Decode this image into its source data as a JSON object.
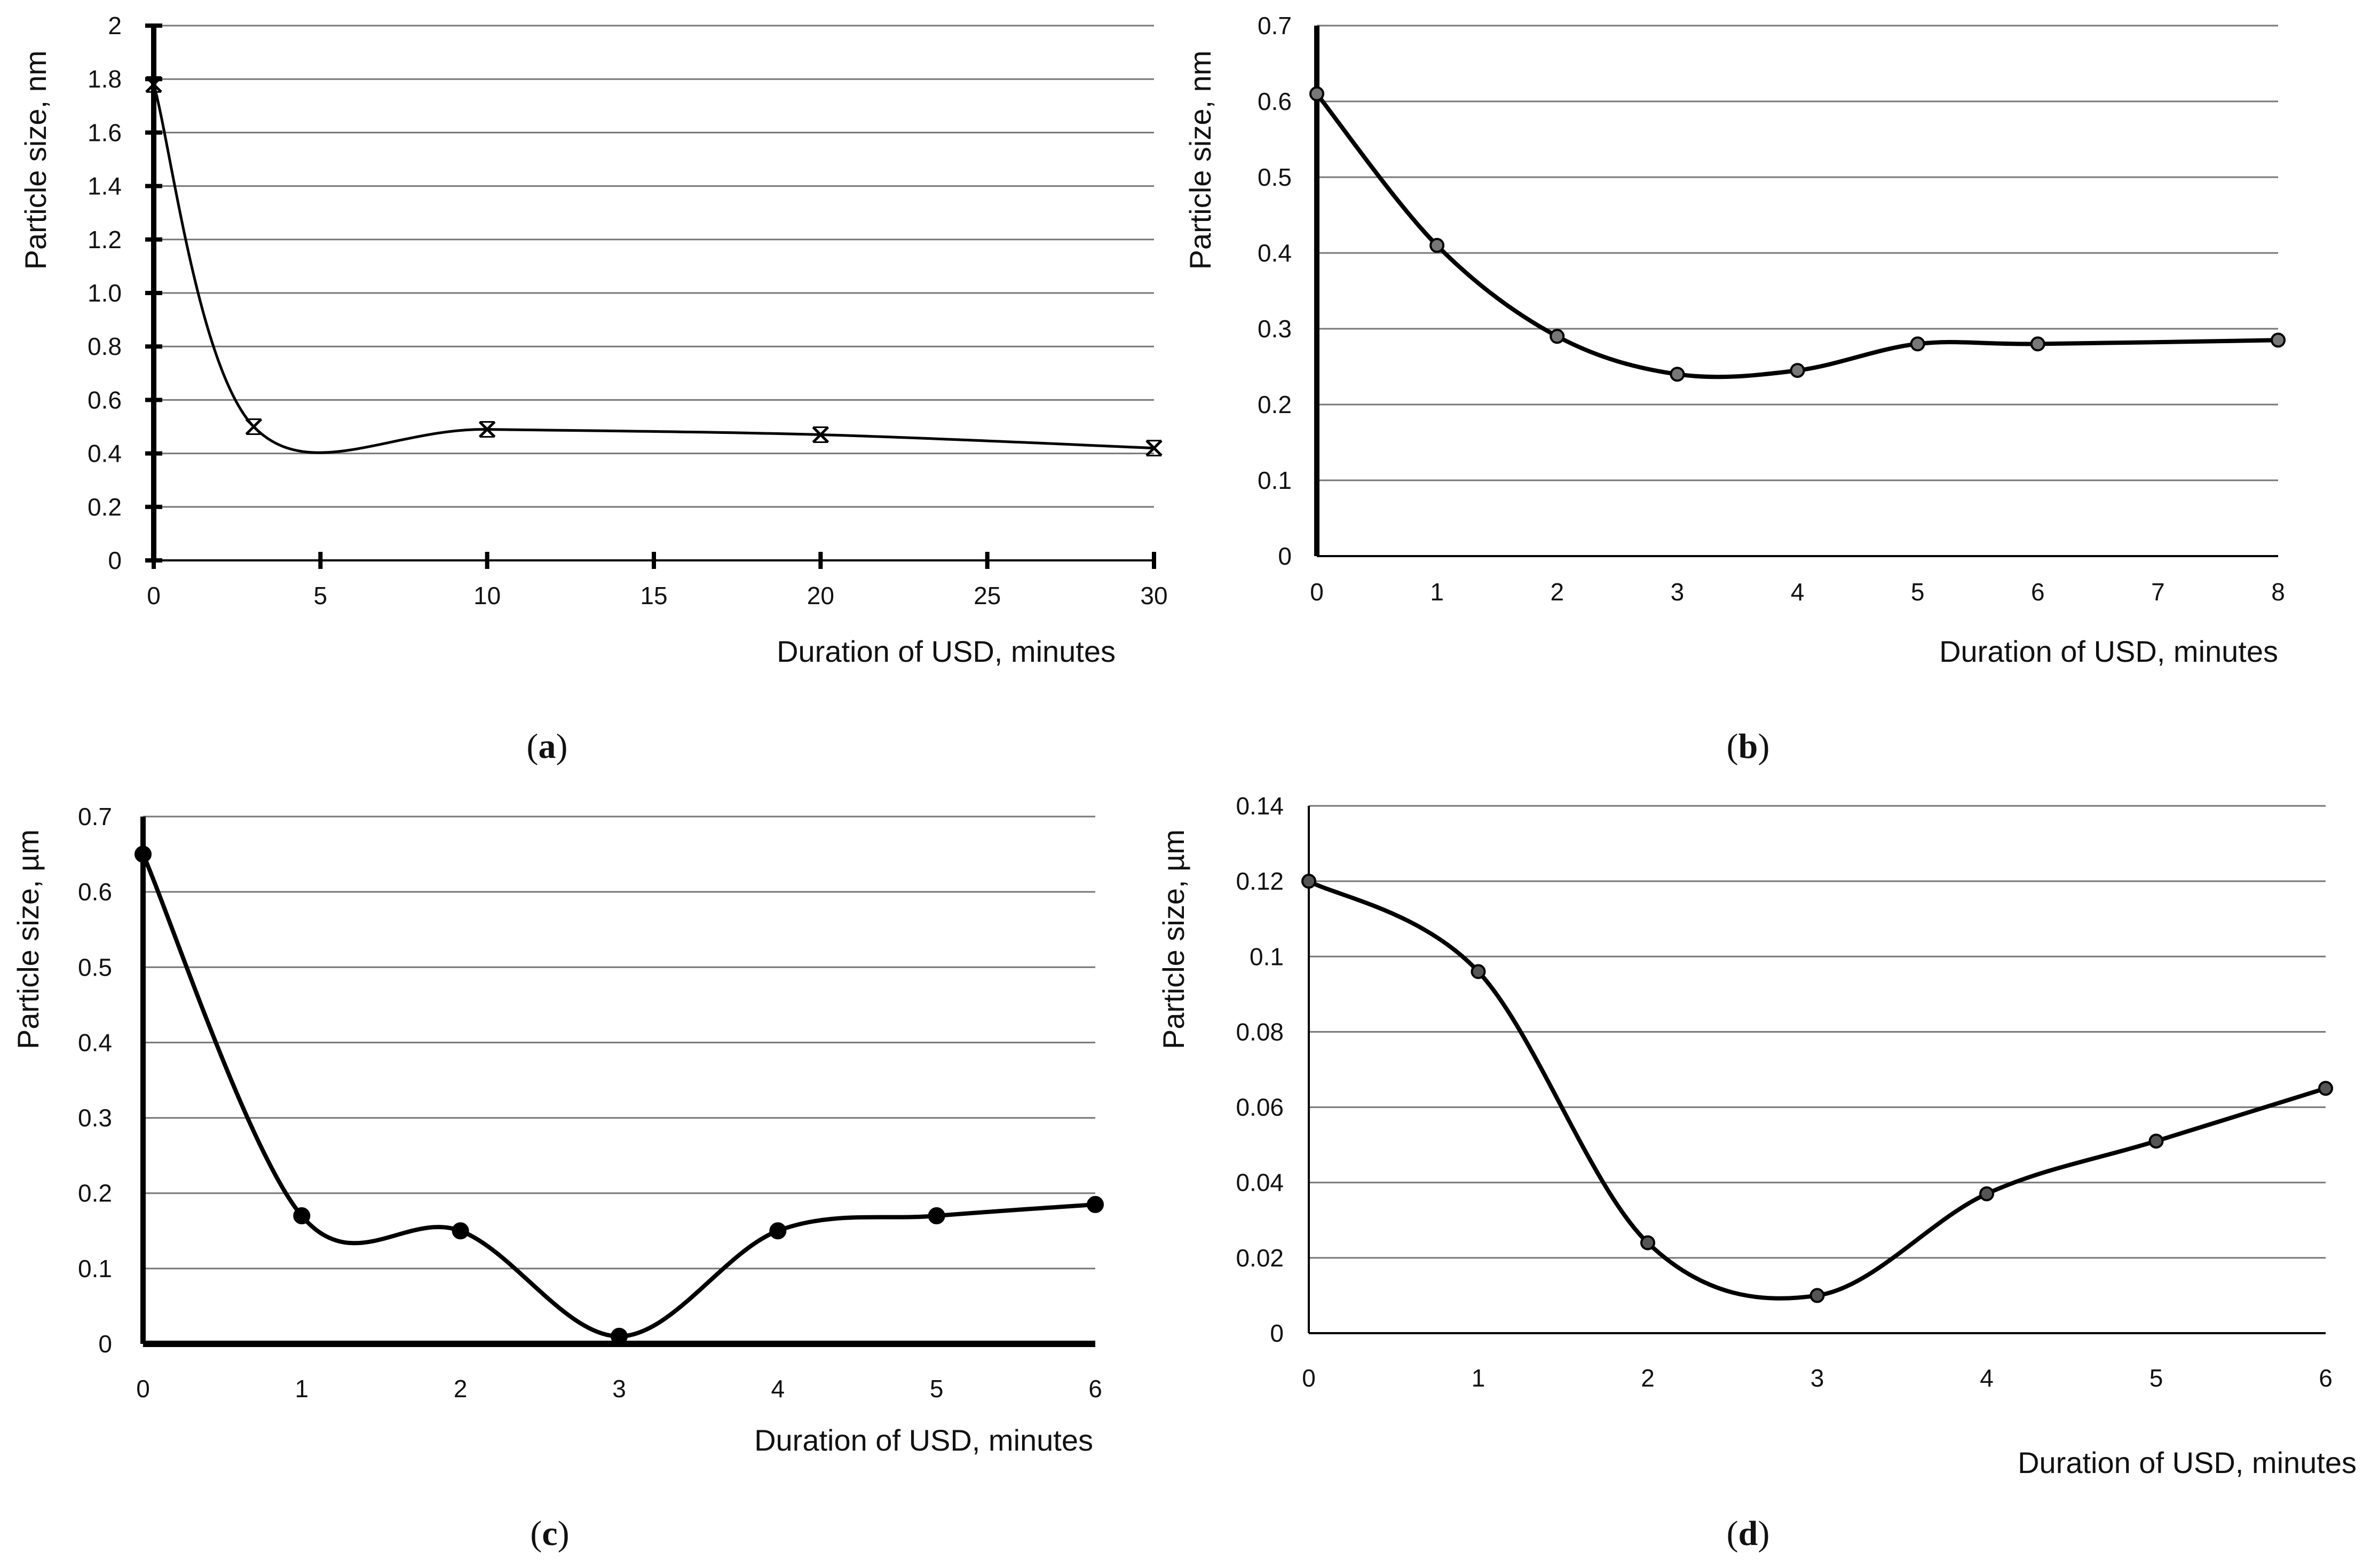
{
  "chart_data": [
    {
      "id": "a",
      "type": "line",
      "panel_label": "a",
      "title": "",
      "xlabel": "Duration of USD, minutes",
      "ylabel": "Particle size, nm",
      "x_ticks": [
        "0",
        "5",
        "10",
        "15",
        "20",
        "25",
        "30"
      ],
      "y_ticks": [
        "0",
        "0.2",
        "0.4",
        "0.6",
        "0.8",
        "1.0",
        "1.2",
        "1.4",
        "1.6",
        "1.8",
        "2"
      ],
      "xlim": [
        0,
        30
      ],
      "ylim": [
        0,
        2
      ],
      "grid": "horizontal",
      "series": [
        {
          "name": "Particle size",
          "marker": "x",
          "x": [
            0,
            3,
            10,
            20,
            30
          ],
          "y": [
            1.78,
            0.5,
            0.49,
            0.47,
            0.42
          ]
        }
      ]
    },
    {
      "id": "b",
      "type": "line",
      "panel_label": "b",
      "title": "",
      "xlabel": "Duration of USD, minutes",
      "ylabel": "Particle size, nm",
      "x_ticks": [
        "0",
        "1",
        "2",
        "3",
        "4",
        "5",
        "6",
        "7",
        "8"
      ],
      "y_ticks": [
        "0",
        "0.1",
        "0.2",
        "0.3",
        "0.4",
        "0.5",
        "0.6",
        "0.7"
      ],
      "xlim": [
        0,
        8
      ],
      "ylim": [
        0,
        0.7
      ],
      "grid": "horizontal",
      "series": [
        {
          "name": "Particle size",
          "marker": "dot",
          "x": [
            0,
            1,
            2,
            3,
            4,
            5,
            6,
            8
          ],
          "y": [
            0.61,
            0.41,
            0.29,
            0.24,
            0.245,
            0.28,
            0.28,
            0.285
          ]
        }
      ]
    },
    {
      "id": "c",
      "type": "line",
      "panel_label": "c",
      "title": "",
      "xlabel": "Duration of USD, minutes",
      "ylabel": "Particle size, µm",
      "x_ticks": [
        "0",
        "1",
        "2",
        "3",
        "4",
        "5",
        "6"
      ],
      "y_ticks": [
        "0",
        "0.1",
        "0.2",
        "0.3",
        "0.4",
        "0.5",
        "0.6",
        "0.7"
      ],
      "xlim": [
        0,
        6
      ],
      "ylim": [
        0,
        0.7
      ],
      "grid": "horizontal",
      "series": [
        {
          "name": "Particle size",
          "marker": "dot",
          "x": [
            0,
            1,
            2,
            3,
            4,
            5,
            6
          ],
          "y": [
            0.65,
            0.17,
            0.15,
            0.01,
            0.15,
            0.17,
            0.185
          ]
        }
      ]
    },
    {
      "id": "d",
      "type": "line",
      "panel_label": "d",
      "title": "",
      "xlabel": "Duration of USD, minutes",
      "ylabel": "Particle size, µm",
      "x_ticks": [
        "0",
        "1",
        "2",
        "3",
        "4",
        "5",
        "6"
      ],
      "y_ticks": [
        "0",
        "0.02",
        "0.04",
        "0.06",
        "0.08",
        "0.1",
        "0.12",
        "0.14"
      ],
      "xlim": [
        0,
        6
      ],
      "ylim": [
        0,
        0.14
      ],
      "grid": "horizontal",
      "series": [
        {
          "name": "Particle size",
          "marker": "dot",
          "x": [
            0,
            1,
            2,
            3,
            4,
            5,
            6
          ],
          "y": [
            0.12,
            0.096,
            0.024,
            0.01,
            0.037,
            0.051,
            0.065
          ]
        }
      ]
    }
  ]
}
